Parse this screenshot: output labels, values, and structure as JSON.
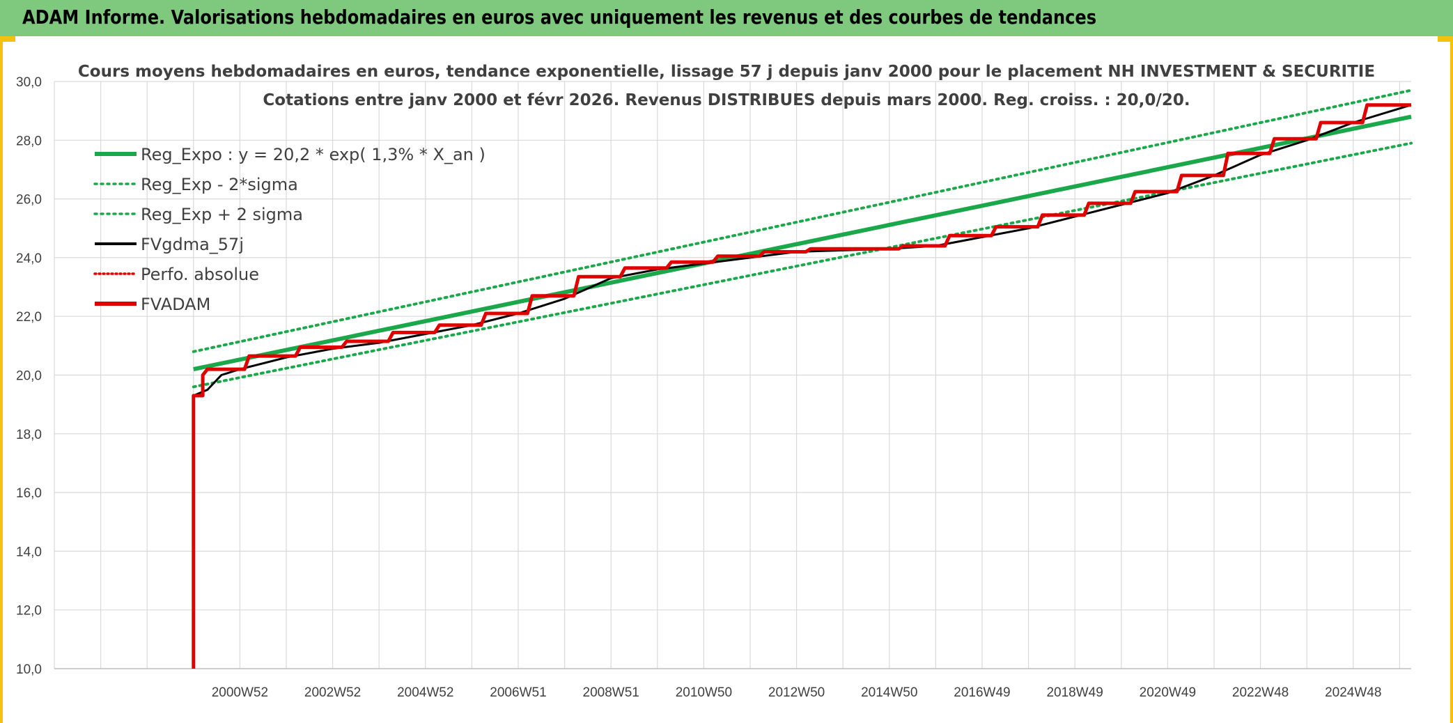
{
  "header": {
    "title": "ADAM Informe. Valorisations hebdomadaires en euros avec uniquement les revenus et des courbes de tendances"
  },
  "colors": {
    "header_bg": "#7ec97e",
    "accent_yellow": "#f4c20d",
    "reg_green": "#1aa84a",
    "fvadam_red": "#e00000",
    "fvgdma_black": "#000000"
  },
  "chart_data": {
    "type": "line",
    "title_lines": [
      "Cours moyens hebdomadaires en euros, tendance exponentielle, lissage 57 j depuis janv 2000 pour le placement NH INVESTMENT & SECURITIE",
      "Cotations entre janv 2000 et févr 2026. Revenus DISTRIBUES depuis mars 2000. Reg. croiss. : 20,0/20."
    ],
    "xlabel": "",
    "ylabel": "",
    "ylim": [
      10,
      30
    ],
    "y_ticks": [
      "10,0",
      "12,0",
      "14,0",
      "16,0",
      "18,0",
      "20,0",
      "22,0",
      "24,0",
      "26,0",
      "28,0",
      "30,0"
    ],
    "x_range": [
      1997.0,
      2026.25
    ],
    "x_tick_labels": [
      {
        "x": 2001.0,
        "label": "2000W52"
      },
      {
        "x": 2003.0,
        "label": "2002W52"
      },
      {
        "x": 2005.0,
        "label": "2004W52"
      },
      {
        "x": 2007.0,
        "label": "2006W51"
      },
      {
        "x": 2009.0,
        "label": "2008W51"
      },
      {
        "x": 2011.0,
        "label": "2010W50"
      },
      {
        "x": 2013.0,
        "label": "2012W50"
      },
      {
        "x": 2015.0,
        "label": "2014W50"
      },
      {
        "x": 2017.0,
        "label": "2016W49"
      },
      {
        "x": 2019.0,
        "label": "2018W49"
      },
      {
        "x": 2021.0,
        "label": "2020W49"
      },
      {
        "x": 2023.0,
        "label": "2022W48"
      },
      {
        "x": 2025.0,
        "label": "2024W48"
      }
    ],
    "grid": true,
    "legend_position": "top-left",
    "series": [
      {
        "name": "Reg_Expo : y = 20,2 * exp( 1,3% *  X_an )",
        "style": "solid-thick",
        "color": "#1aa84a",
        "x": [
          2000.0,
          2026.25
        ],
        "values": [
          20.2,
          28.8
        ]
      },
      {
        "name": "Reg_Exp - 2*sigma",
        "style": "dotted",
        "color": "#1aa84a",
        "x": [
          2000.0,
          2026.25
        ],
        "values": [
          19.6,
          27.9
        ]
      },
      {
        "name": "Reg_Exp + 2 sigma",
        "style": "dotted",
        "color": "#1aa84a",
        "x": [
          2000.0,
          2026.25
        ],
        "values": [
          20.8,
          29.7
        ]
      },
      {
        "name": "FVgdma_57j",
        "style": "solid",
        "color": "#000000",
        "x": [
          2000.0,
          2000.3,
          2000.6,
          2001.0,
          2002.0,
          2003.0,
          2004.0,
          2005.0,
          2006.0,
          2007.0,
          2008.0,
          2009.0,
          2010.0,
          2011.0,
          2012.0,
          2013.0,
          2014.0,
          2015.0,
          2016.0,
          2017.0,
          2018.0,
          2019.0,
          2020.0,
          2021.0,
          2022.0,
          2023.0,
          2024.0,
          2025.0,
          2026.25
        ],
        "values": [
          19.3,
          19.5,
          20.0,
          20.2,
          20.6,
          20.9,
          21.1,
          21.4,
          21.7,
          22.1,
          22.6,
          23.3,
          23.6,
          23.8,
          24.0,
          24.2,
          24.25,
          24.3,
          24.4,
          24.7,
          25.0,
          25.4,
          25.8,
          26.2,
          26.8,
          27.5,
          28.0,
          28.6,
          29.2
        ]
      },
      {
        "name": "Perfo. absolue",
        "style": "dotted",
        "color": "#e00000",
        "x": [],
        "values": []
      },
      {
        "name": "FVADAM",
        "style": "solid-thick",
        "color": "#e00000",
        "x": [
          2000.0,
          2000.0,
          2000.2,
          2000.2,
          2000.3,
          2001.1,
          2001.2,
          2002.2,
          2002.3,
          2003.2,
          2003.3,
          2004.2,
          2004.3,
          2005.2,
          2005.3,
          2006.2,
          2006.3,
          2007.2,
          2007.3,
          2008.2,
          2008.3,
          2009.2,
          2009.3,
          2010.2,
          2010.3,
          2011.2,
          2011.3,
          2012.2,
          2012.3,
          2013.2,
          2013.3,
          2014.2,
          2014.3,
          2015.2,
          2015.3,
          2016.2,
          2016.3,
          2017.2,
          2017.3,
          2018.2,
          2018.3,
          2019.2,
          2019.3,
          2020.2,
          2020.3,
          2021.2,
          2021.3,
          2022.2,
          2022.3,
          2023.2,
          2023.3,
          2024.2,
          2024.3,
          2025.2,
          2025.3,
          2026.25
        ],
        "values": [
          10.0,
          19.3,
          19.3,
          20.0,
          20.2,
          20.2,
          20.65,
          20.65,
          20.95,
          20.95,
          21.15,
          21.15,
          21.45,
          21.45,
          21.7,
          21.7,
          22.1,
          22.1,
          22.7,
          22.7,
          23.35,
          23.35,
          23.65,
          23.65,
          23.85,
          23.85,
          24.05,
          24.05,
          24.2,
          24.2,
          24.3,
          24.3,
          24.3,
          24.3,
          24.4,
          24.4,
          24.75,
          24.75,
          25.05,
          25.05,
          25.45,
          25.45,
          25.85,
          25.85,
          26.25,
          26.25,
          26.8,
          26.8,
          27.55,
          27.55,
          28.05,
          28.05,
          28.6,
          28.6,
          29.2,
          29.2
        ]
      }
    ]
  }
}
